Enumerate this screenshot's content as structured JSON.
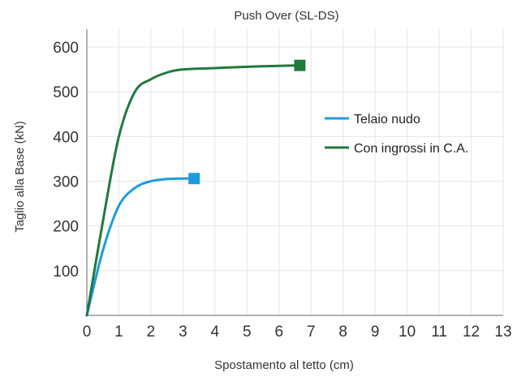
{
  "chart_data": {
    "type": "line",
    "title": "Push Over (SL-DS)",
    "xlabel": "Spostamento al tetto (cm)",
    "ylabel": "Taglio alla Base (kN)",
    "xlim": [
      0,
      13
    ],
    "ylim": [
      0,
      640
    ],
    "x_ticks": [
      0,
      1,
      2,
      3,
      4,
      5,
      6,
      7,
      8,
      9,
      10,
      11,
      12,
      13
    ],
    "y_ticks": [
      100,
      200,
      300,
      400,
      500,
      600
    ],
    "grid": true,
    "legend_position": "right",
    "series": [
      {
        "name": "Telaio nudo",
        "color": "#1e9be0",
        "marker_end": "square",
        "x": [
          0,
          0.5,
          1.0,
          1.5,
          2.0,
          2.5,
          3.0,
          3.35
        ],
        "y": [
          0,
          145,
          245,
          285,
          300,
          305,
          306,
          306
        ]
      },
      {
        "name": "Con ingrossi in C.A.",
        "color": "#1f7a3c",
        "marker_end": "square",
        "x": [
          0,
          0.5,
          1.0,
          1.5,
          2.0,
          2.5,
          3.0,
          4.0,
          5.0,
          6.0,
          6.65
        ],
        "y": [
          0,
          210,
          400,
          500,
          528,
          543,
          550,
          553,
          556,
          558,
          559
        ]
      }
    ]
  }
}
